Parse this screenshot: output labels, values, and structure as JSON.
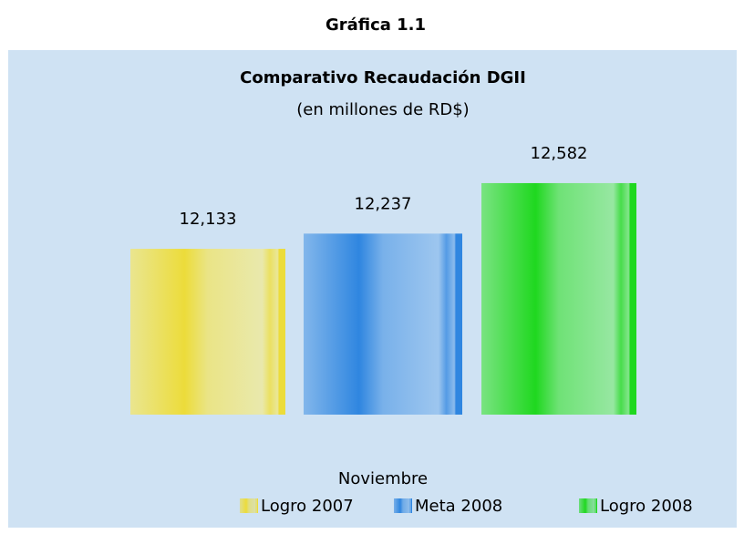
{
  "heading": "Gráfica 1.1",
  "chart_data": {
    "type": "bar",
    "title": "Comparativo Recaudación DGII",
    "subtitle": "(en millones de RD$)",
    "categories": [
      "Noviembre"
    ],
    "series": [
      {
        "name": "Logro 2007",
        "color": "#ecdc3a",
        "values": [
          12133
        ],
        "value_labels": [
          "12,133"
        ]
      },
      {
        "name": "Meta 2008",
        "color": "#2f86e0",
        "values": [
          12237
        ],
        "value_labels": [
          "12,237"
        ]
      },
      {
        "name": "Logro 2008",
        "color": "#1fd81f",
        "values": [
          12582
        ],
        "value_labels": [
          "12,582"
        ]
      }
    ],
    "ylim": [
      11000,
      12700
    ],
    "legend": "bottom"
  }
}
